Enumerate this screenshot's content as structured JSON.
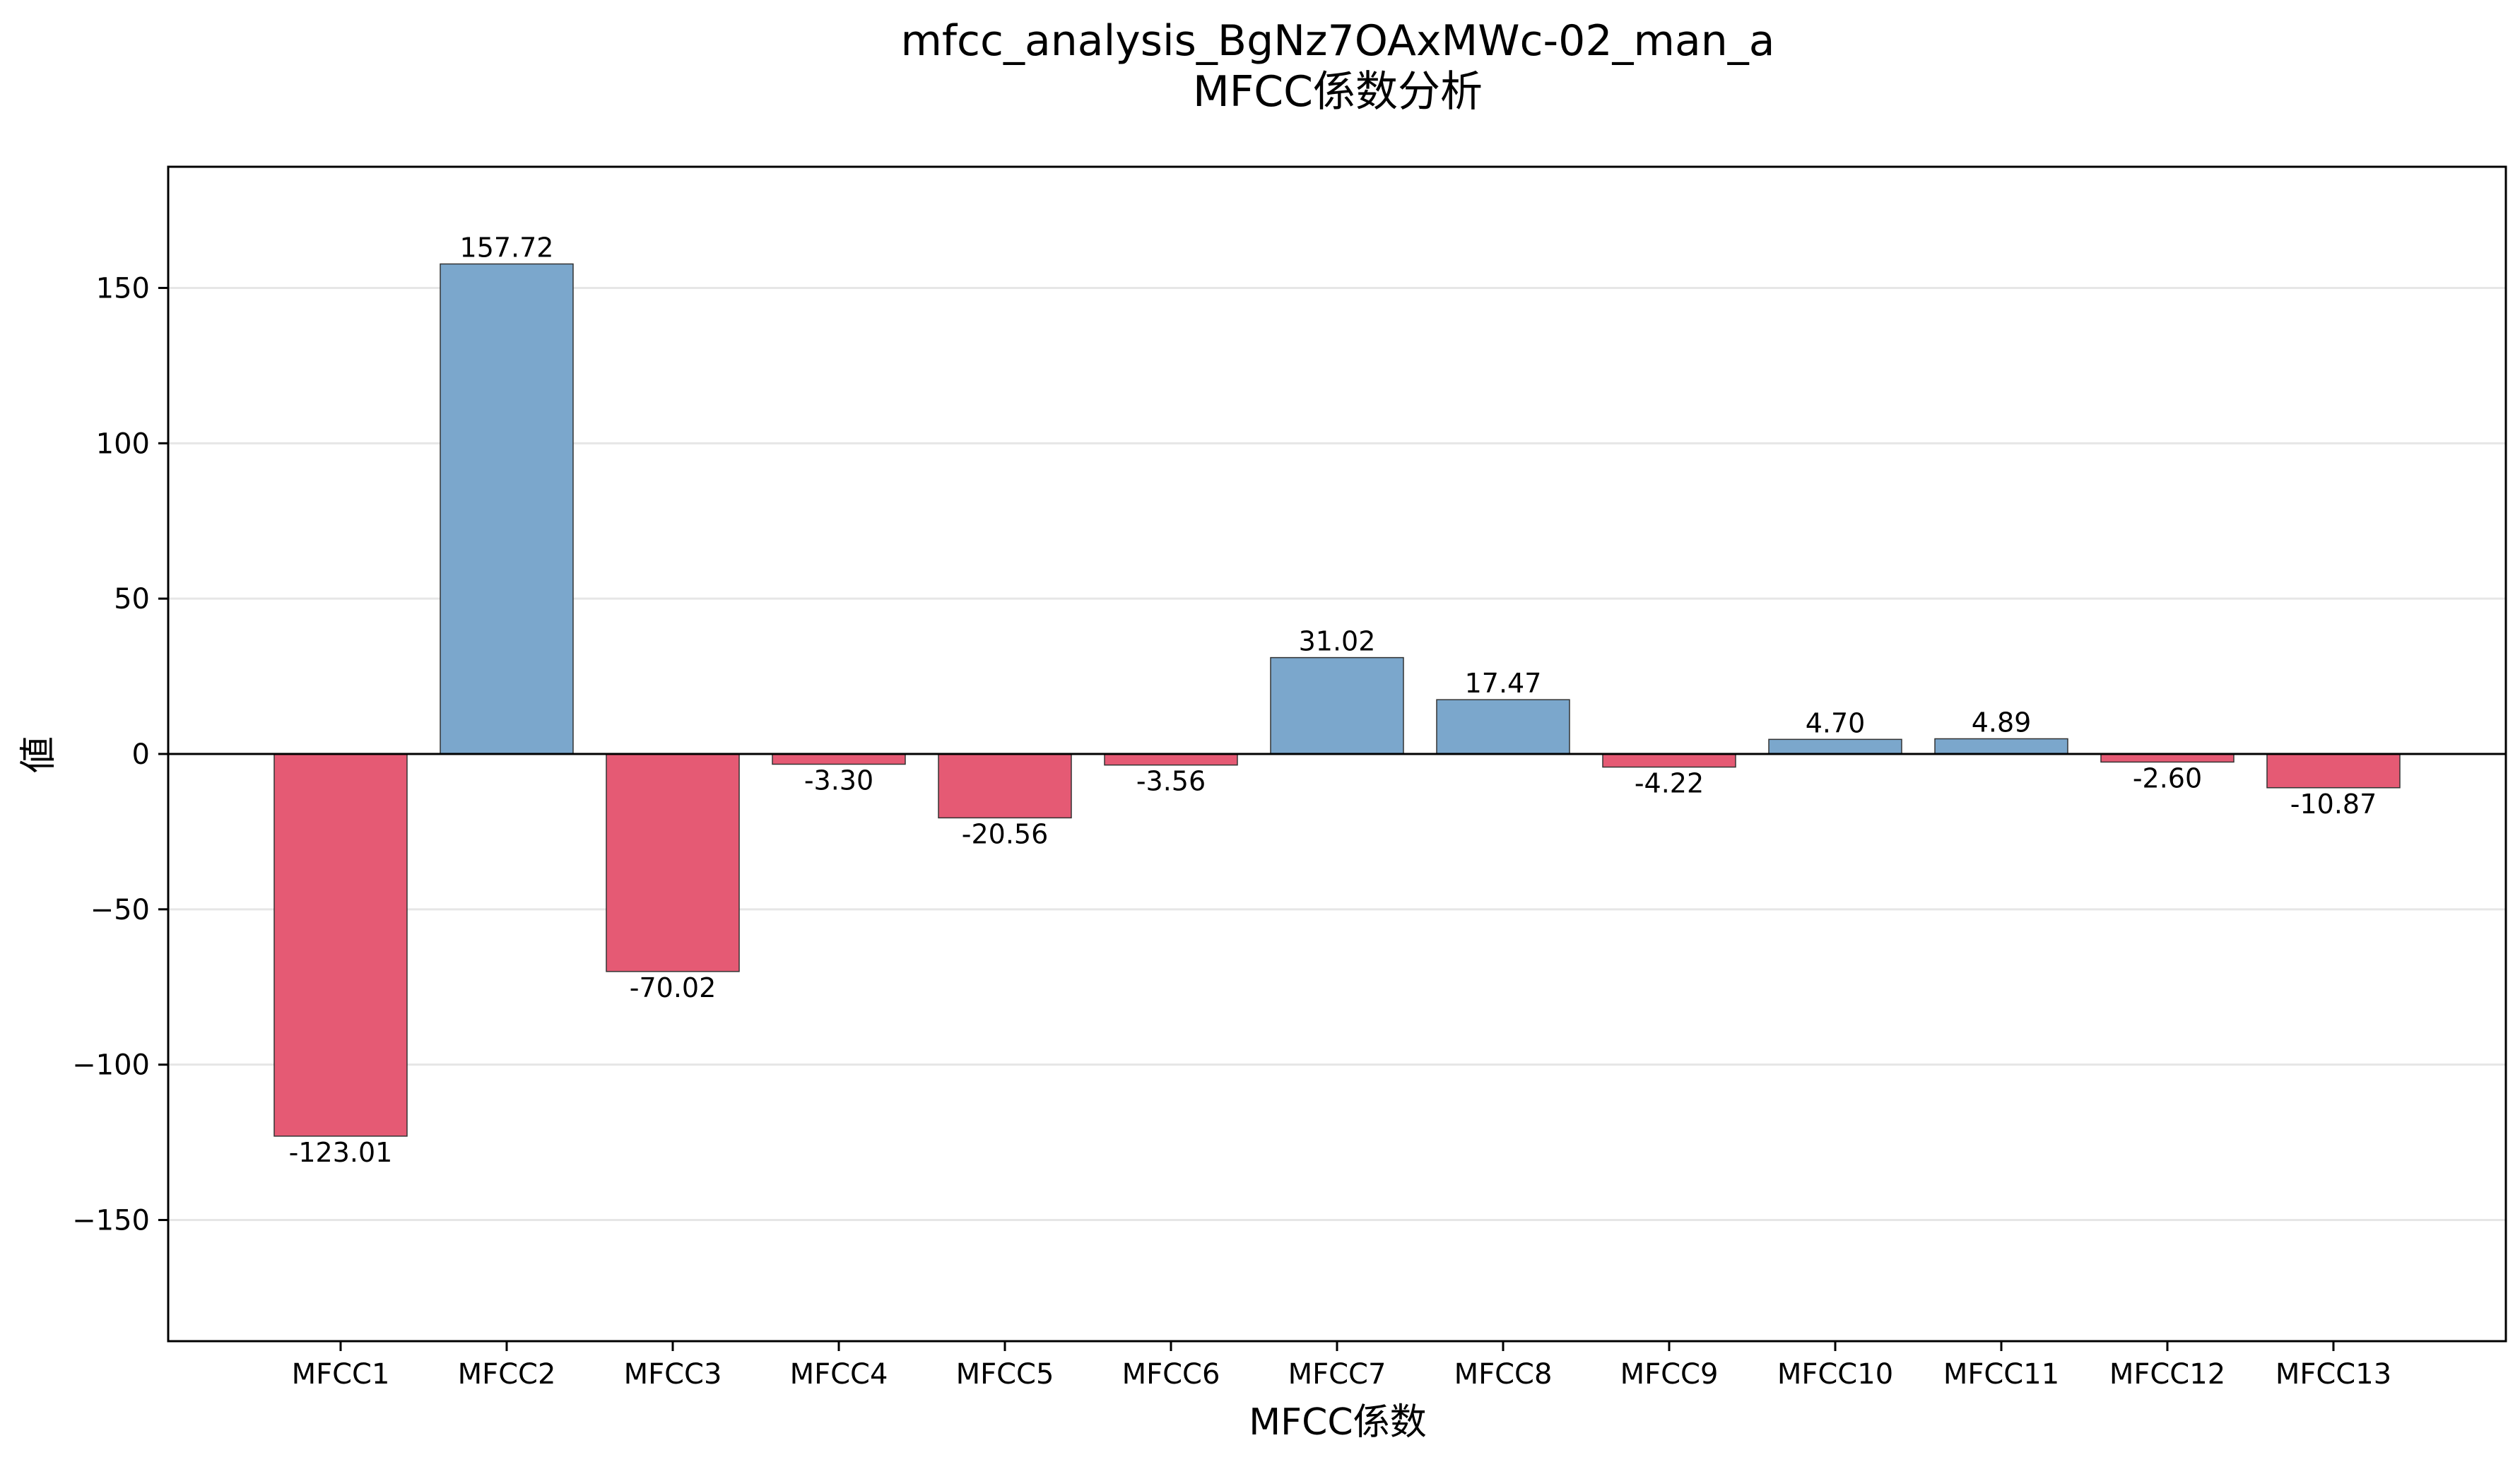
{
  "chart_data": {
    "type": "bar",
    "title": "mfcc_analysis_BgNz7OAxMWc-02_man_a",
    "subtitle": "MFCC係数分析",
    "xlabel": "MFCC係数",
    "ylabel": "値",
    "categories": [
      "MFCC1",
      "MFCC2",
      "MFCC3",
      "MFCC4",
      "MFCC5",
      "MFCC6",
      "MFCC7",
      "MFCC8",
      "MFCC9",
      "MFCC10",
      "MFCC11",
      "MFCC12",
      "MFCC13"
    ],
    "values": [
      -123.01,
      157.72,
      -70.02,
      -3.3,
      -20.56,
      -3.56,
      31.02,
      17.47,
      -4.22,
      4.7,
      4.89,
      -2.6,
      -10.87
    ],
    "value_labels": [
      "-123.01",
      "157.72",
      "-70.02",
      "-3.30",
      "-20.56",
      "-3.56",
      "31.02",
      "17.47",
      "-4.22",
      "4.70",
      "4.89",
      "-2.60",
      "-10.87"
    ],
    "ylim": [
      -189,
      189
    ],
    "yticks": [
      150,
      100,
      50,
      0,
      -50,
      -100,
      -150
    ],
    "ytick_labels": [
      "150",
      "100",
      "50",
      "0",
      "−50",
      "−100",
      "−150"
    ],
    "grid": true,
    "colors": {
      "positive": "#7ba7cc",
      "negative": "#e55a74",
      "edge": "#333333",
      "grid": "#e6e6e6"
    }
  }
}
